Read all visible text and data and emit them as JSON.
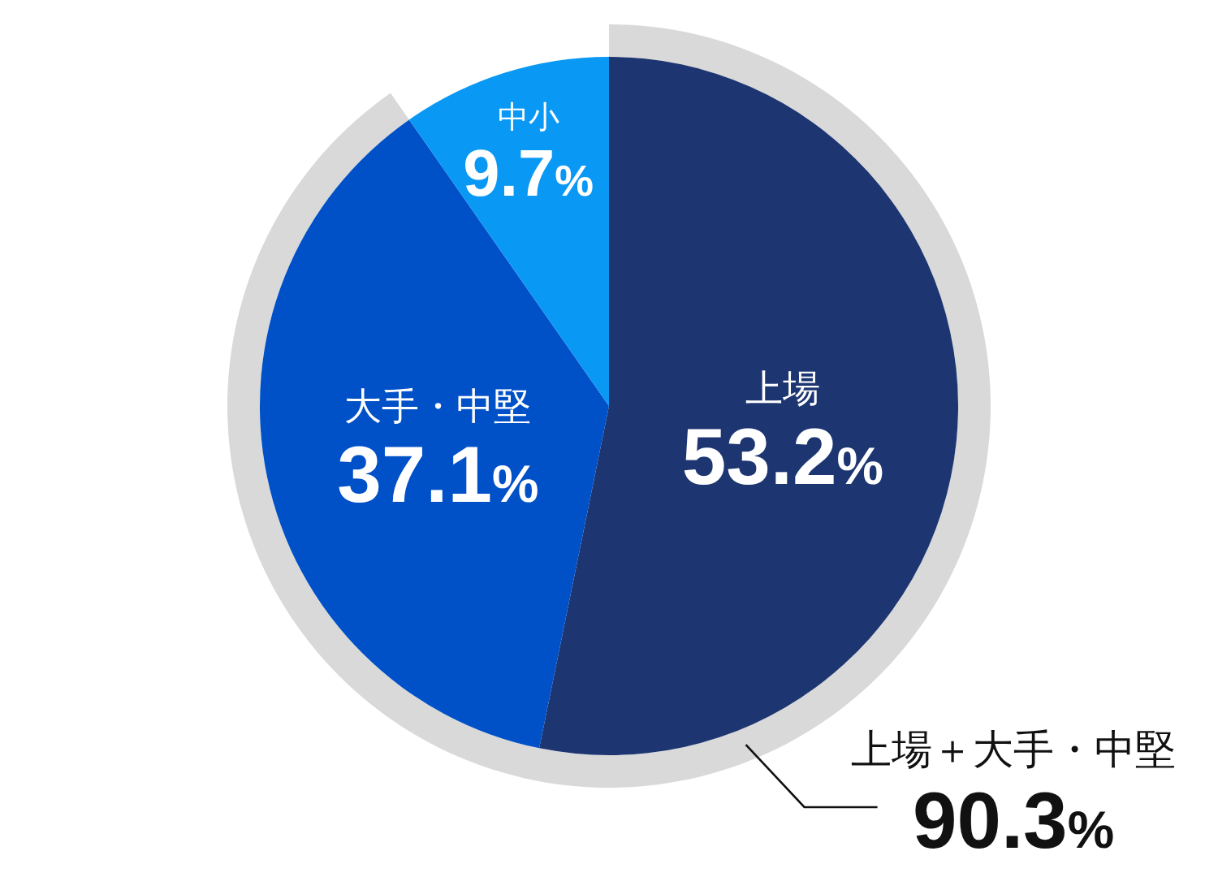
{
  "chart_data": {
    "type": "pie",
    "categories": [
      "上場",
      "大手・中堅",
      "中小"
    ],
    "values": [
      53.2,
      37.1,
      9.7
    ],
    "colors": [
      "#1d3571",
      "#0050c8",
      "#0a98f5"
    ],
    "value_labels": [
      "53.2%",
      "37.1%",
      "9.7%"
    ],
    "annotations": [
      "上場＋大手・中堅",
      "90.3%"
    ]
  }
}
